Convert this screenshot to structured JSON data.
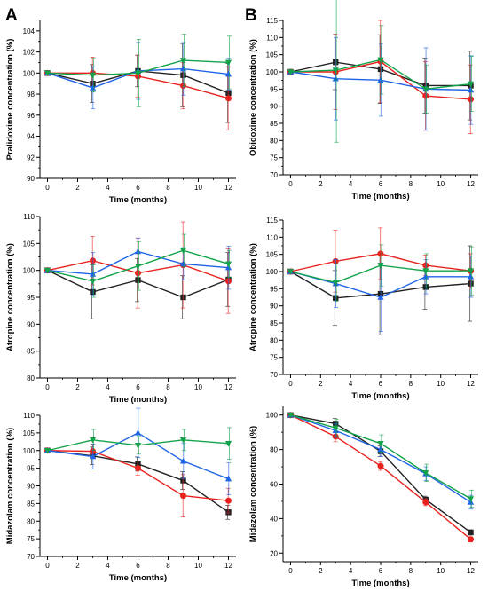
{
  "panel_labels": [
    "A",
    "B"
  ],
  "series_colors": [
    "#222222",
    "#e8231f",
    "#1f64e6",
    "#12a34a"
  ],
  "marker_shapes": [
    "square",
    "circle",
    "triangle",
    "triangle-down"
  ],
  "chart_data": [
    {
      "type": "line",
      "panel": "A",
      "xlabel": "Time (months)",
      "ylabel": "Pralidoxime concentration (%)",
      "x": [
        0,
        3,
        6,
        9,
        12
      ],
      "xticks": [
        0,
        2,
        4,
        6,
        8,
        10,
        12
      ],
      "xlim": [
        -0.5,
        12.5
      ],
      "ylim": [
        90,
        105
      ],
      "yticks": [
        90,
        92,
        94,
        96,
        98,
        100,
        102,
        104
      ],
      "grid": false,
      "legend": "none",
      "series": [
        {
          "values": [
            100,
            99.0,
            100.2,
            99.8,
            98.1
          ],
          "errors": [
            0,
            1.8,
            1.5,
            3.0,
            2.8
          ]
        },
        {
          "values": [
            100,
            100.0,
            99.7,
            98.8,
            97.6
          ],
          "errors": [
            0,
            1.5,
            2.0,
            2.2,
            3.0
          ]
        },
        {
          "values": [
            100,
            98.6,
            100.2,
            100.4,
            99.9
          ],
          "errors": [
            0,
            2.0,
            2.7,
            2.5,
            1.5
          ]
        },
        {
          "values": [
            100,
            99.8,
            100.0,
            101.2,
            101.0
          ],
          "errors": [
            0,
            1.6,
            3.2,
            2.5,
            2.5
          ]
        }
      ]
    },
    {
      "type": "line",
      "panel": "B",
      "xlabel": "Time (months)",
      "ylabel": "Obidoxime concentration (%)",
      "x": [
        0,
        3,
        6,
        9,
        12
      ],
      "xticks": [
        0,
        2,
        4,
        6,
        8,
        10,
        12
      ],
      "xlim": [
        -0.5,
        12.5
      ],
      "ylim": [
        70,
        115
      ],
      "yticks": [
        70,
        75,
        80,
        85,
        90,
        95,
        100,
        105,
        110,
        115
      ],
      "grid": false,
      "legend": "none",
      "series": [
        {
          "values": [
            100,
            102.8,
            100.8,
            96.0,
            96.0
          ],
          "errors": [
            0,
            8.0,
            10.0,
            8.0,
            10.0
          ]
        },
        {
          "values": [
            100,
            100.0,
            103.0,
            93.0,
            92.0
          ],
          "errors": [
            0,
            11.0,
            12.0,
            10.0,
            10.0
          ]
        },
        {
          "values": [
            100,
            98.0,
            97.6,
            95.0,
            94.7
          ],
          "errors": [
            0,
            12.0,
            10.5,
            12.0,
            10.0
          ]
        },
        {
          "values": [
            100,
            100.5,
            103.5,
            95.0,
            96.5
          ],
          "errors": [
            0,
            21.0,
            10.0,
            7.0,
            8.0
          ]
        }
      ]
    },
    {
      "type": "line",
      "panel": "A",
      "xlabel": "Time (months)",
      "ylabel": "Atropine concentration (%)",
      "x": [
        0,
        3,
        6,
        9,
        12
      ],
      "xticks": [
        0,
        2,
        4,
        6,
        8,
        10,
        12
      ],
      "xlim": [
        -0.5,
        12.5
      ],
      "ylim": [
        80,
        110
      ],
      "yticks": [
        80,
        85,
        90,
        95,
        100,
        105,
        110
      ],
      "grid": false,
      "legend": "none",
      "series": [
        {
          "values": [
            100,
            96.0,
            98.2,
            95.0,
            98.3
          ],
          "errors": [
            0,
            5.0,
            4.0,
            4.0,
            5.0
          ]
        },
        {
          "values": [
            100,
            101.8,
            99.5,
            101.0,
            98.0
          ],
          "errors": [
            0,
            4.5,
            6.5,
            8.0,
            6.0
          ]
        },
        {
          "values": [
            100,
            99.3,
            103.5,
            101.2,
            100.5
          ],
          "errors": [
            0,
            4.0,
            2.5,
            3.0,
            4.0
          ]
        },
        {
          "values": [
            100,
            98.0,
            100.8,
            103.7,
            101.2
          ],
          "errors": [
            0,
            3.0,
            4.5,
            3.0,
            2.5
          ]
        }
      ]
    },
    {
      "type": "line",
      "panel": "B",
      "xlabel": "Time (months)",
      "ylabel": "Atropine concentration (%)",
      "x": [
        0,
        3,
        6,
        9,
        12
      ],
      "xticks": [
        0,
        2,
        4,
        6,
        8,
        10,
        12
      ],
      "xlim": [
        -0.5,
        12.5
      ],
      "ylim": [
        70,
        115
      ],
      "yticks": [
        70,
        75,
        80,
        85,
        90,
        95,
        100,
        105,
        110,
        115
      ],
      "grid": false,
      "legend": "none",
      "series": [
        {
          "values": [
            100,
            92.3,
            93.5,
            95.5,
            96.5
          ],
          "errors": [
            0,
            8.0,
            12.0,
            6.5,
            11.0
          ]
        },
        {
          "values": [
            100,
            103.0,
            105.2,
            101.8,
            100.2
          ],
          "errors": [
            0,
            9.0,
            7.5,
            3.0,
            5.0
          ]
        },
        {
          "values": [
            100,
            96.5,
            92.5,
            98.5,
            98.5
          ],
          "errors": [
            0,
            7.0,
            10.0,
            5.0,
            6.0
          ]
        },
        {
          "values": [
            100,
            96.8,
            101.8,
            100.2,
            100.2
          ],
          "errors": [
            0,
            5.5,
            6.0,
            5.0,
            7.0
          ]
        }
      ]
    },
    {
      "type": "line",
      "panel": "A",
      "xlabel": "Time (months)",
      "ylabel": "Midazolam concentration (%)",
      "x": [
        0,
        3,
        6,
        9,
        12
      ],
      "xticks": [
        0,
        2,
        4,
        6,
        8,
        10,
        12
      ],
      "xlim": [
        -0.5,
        12.5
      ],
      "ylim": [
        70,
        110
      ],
      "yticks": [
        70,
        75,
        80,
        85,
        90,
        95,
        100,
        105,
        110
      ],
      "grid": false,
      "legend": "none",
      "series": [
        {
          "values": [
            100,
            98.5,
            96.2,
            91.5,
            82.5
          ],
          "errors": [
            0,
            2.5,
            2.0,
            2.5,
            2.0
          ]
        },
        {
          "values": [
            100,
            99.8,
            95.0,
            87.2,
            85.8
          ],
          "errors": [
            0,
            2.0,
            2.0,
            6.0,
            3.5
          ]
        },
        {
          "values": [
            100,
            98.3,
            105.0,
            97.0,
            92.0
          ],
          "errors": [
            0,
            3.5,
            7.0,
            5.0,
            4.5
          ]
        },
        {
          "values": [
            100,
            103.0,
            101.5,
            103.0,
            102.0
          ],
          "errors": [
            0,
            3.0,
            2.5,
            3.0,
            4.5
          ]
        }
      ]
    },
    {
      "type": "line",
      "panel": "B",
      "xlabel": "Time (months)",
      "ylabel": "Midazolam concentration (%)",
      "x": [
        0,
        3,
        6,
        9,
        12
      ],
      "xticks": [
        0,
        2,
        4,
        6,
        8,
        10,
        12
      ],
      "xlim": [
        -0.5,
        12.5
      ],
      "ylim": [
        15,
        105
      ],
      "yticks": [
        20,
        40,
        60,
        80,
        100
      ],
      "grid": false,
      "legend": "none",
      "series": [
        {
          "values": [
            100,
            95.0,
            79.0,
            51.0,
            32.0
          ],
          "errors": [
            0,
            3.0,
            3.0,
            2.0,
            1.5
          ]
        },
        {
          "values": [
            100,
            87.5,
            70.5,
            49.5,
            28.0
          ],
          "errors": [
            0,
            3.0,
            2.5,
            2.0,
            1.5
          ]
        },
        {
          "values": [
            100,
            91.0,
            80.0,
            66.0,
            49.5
          ],
          "errors": [
            0,
            4.0,
            4.0,
            4.0,
            4.0
          ]
        },
        {
          "values": [
            100,
            92.5,
            83.5,
            66.5,
            51.5
          ],
          "errors": [
            0,
            5.0,
            5.0,
            5.0,
            5.0
          ]
        }
      ]
    }
  ]
}
